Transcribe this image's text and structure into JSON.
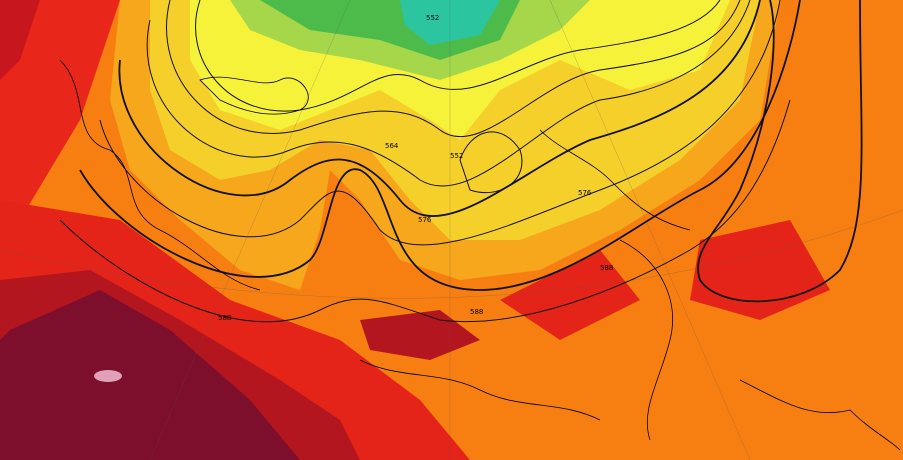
{
  "map": {
    "contour_labels": [
      "552",
      "552",
      "564",
      "576",
      "576",
      "588",
      "588",
      "588"
    ]
  }
}
